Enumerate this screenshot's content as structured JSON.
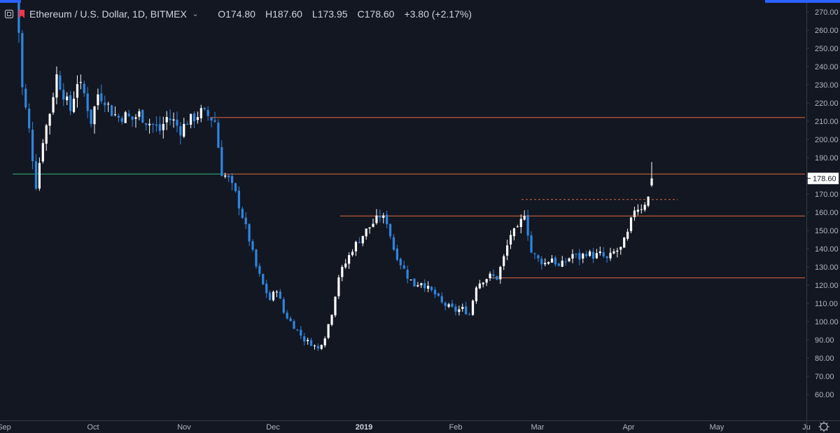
{
  "legend": {
    "title": "Ethereum / U.S. Dollar, 1D, BITMEX",
    "open": "O174.80",
    "high": "H187.60",
    "low": "L173.95",
    "close": "C178.60",
    "change": "+3.80 (+2.17%)"
  },
  "last_price_label": "178.60",
  "colors": {
    "background": "#131722",
    "up": "#ffffff",
    "down": "#2e86e0",
    "hline": "#e0683a",
    "support": "#2bb673",
    "axis_text": "#b2b5be",
    "pane_border": "#363a45"
  },
  "icons": [
    "settings-icon",
    "status-flag-icon",
    "chevron-down-icon",
    "gear-icon"
  ],
  "chart_data": {
    "type": "candlestick",
    "symbol": "Ethereum / U.S. Dollar",
    "interval": "1D",
    "exchange": "BITMEX",
    "x_ticks": [
      "Sep",
      "Oct",
      "Nov",
      "Dec",
      "2019",
      "Feb",
      "Mar",
      "Apr",
      "May",
      "Ju"
    ],
    "y_ticks": [
      "280.00",
      "270.00",
      "260.00",
      "250.00",
      "240.00",
      "230.00",
      "220.00",
      "210.00",
      "200.00",
      "190.00",
      "180.00",
      "170.00",
      "160.00",
      "150.00",
      "140.00",
      "130.00",
      "120.00",
      "110.00",
      "100.00",
      "90.00",
      "80.00",
      "70.00",
      "60.00"
    ],
    "ylim": [
      55,
      283
    ],
    "close_path": [
      [
        1,
        290
      ],
      [
        3,
        228
      ],
      [
        5,
        205
      ],
      [
        7,
        175
      ],
      [
        9,
        200
      ],
      [
        11,
        215
      ],
      [
        13,
        235
      ],
      [
        15,
        225
      ],
      [
        17,
        216
      ],
      [
        19,
        232
      ],
      [
        21,
        225
      ],
      [
        23,
        210
      ],
      [
        25,
        225
      ],
      [
        27,
        222
      ],
      [
        29,
        215
      ],
      [
        31,
        212
      ],
      [
        33,
        213
      ],
      [
        35,
        211
      ],
      [
        37,
        214
      ],
      [
        39,
        210
      ],
      [
        41,
        208
      ],
      [
        43,
        205
      ],
      [
        45,
        212
      ],
      [
        47,
        210
      ],
      [
        49,
        205
      ],
      [
        51,
        210
      ],
      [
        53,
        212
      ],
      [
        55,
        215
      ],
      [
        57,
        213
      ],
      [
        59,
        210
      ],
      [
        61,
        182
      ],
      [
        63,
        178
      ],
      [
        65,
        170
      ],
      [
        67,
        158
      ],
      [
        69,
        145
      ],
      [
        71,
        130
      ],
      [
        73,
        120
      ],
      [
        75,
        112
      ],
      [
        77,
        118
      ],
      [
        79,
        105
      ],
      [
        81,
        100
      ],
      [
        83,
        95
      ],
      [
        85,
        90
      ],
      [
        87,
        88
      ],
      [
        89,
        85
      ],
      [
        91,
        92
      ],
      [
        93,
        105
      ],
      [
        95,
        125
      ],
      [
        97,
        132
      ],
      [
        99,
        140
      ],
      [
        101,
        145
      ],
      [
        103,
        150
      ],
      [
        105,
        154
      ],
      [
        107,
        158
      ],
      [
        109,
        155
      ],
      [
        111,
        140
      ],
      [
        113,
        132
      ],
      [
        115,
        125
      ],
      [
        117,
        120
      ],
      [
        119,
        122
      ],
      [
        121,
        118
      ],
      [
        123,
        115
      ],
      [
        125,
        110
      ],
      [
        127,
        108
      ],
      [
        129,
        106
      ],
      [
        131,
        107
      ],
      [
        133,
        104
      ],
      [
        135,
        120
      ],
      [
        137,
        123
      ],
      [
        139,
        125
      ],
      [
        141,
        124
      ],
      [
        143,
        135
      ],
      [
        145,
        148
      ],
      [
        147,
        150
      ],
      [
        149,
        160
      ],
      [
        151,
        138
      ],
      [
        153,
        134
      ],
      [
        155,
        132
      ],
      [
        157,
        135
      ],
      [
        159,
        130
      ],
      [
        161,
        133
      ],
      [
        163,
        137
      ],
      [
        165,
        135
      ],
      [
        167,
        138
      ],
      [
        169,
        136
      ],
      [
        171,
        137
      ],
      [
        173,
        134
      ],
      [
        175,
        138
      ],
      [
        177,
        140
      ],
      [
        179,
        148
      ],
      [
        181,
        162
      ],
      [
        183,
        163
      ],
      [
        185,
        168
      ],
      [
        186,
        178.6
      ]
    ],
    "horizontal_lines": [
      {
        "price": 212,
        "color": "orange"
      },
      {
        "price": 181,
        "color": "orange"
      },
      {
        "price": 181,
        "color": "green"
      },
      {
        "price": 158,
        "color": "orange"
      },
      {
        "price": 124,
        "color": "orange"
      },
      {
        "price": 167,
        "color": "orange-dashed"
      }
    ],
    "last": {
      "open": 174.8,
      "high": 187.6,
      "low": 173.95,
      "close": 178.6,
      "change": 3.8,
      "change_pct": 2.17
    }
  }
}
